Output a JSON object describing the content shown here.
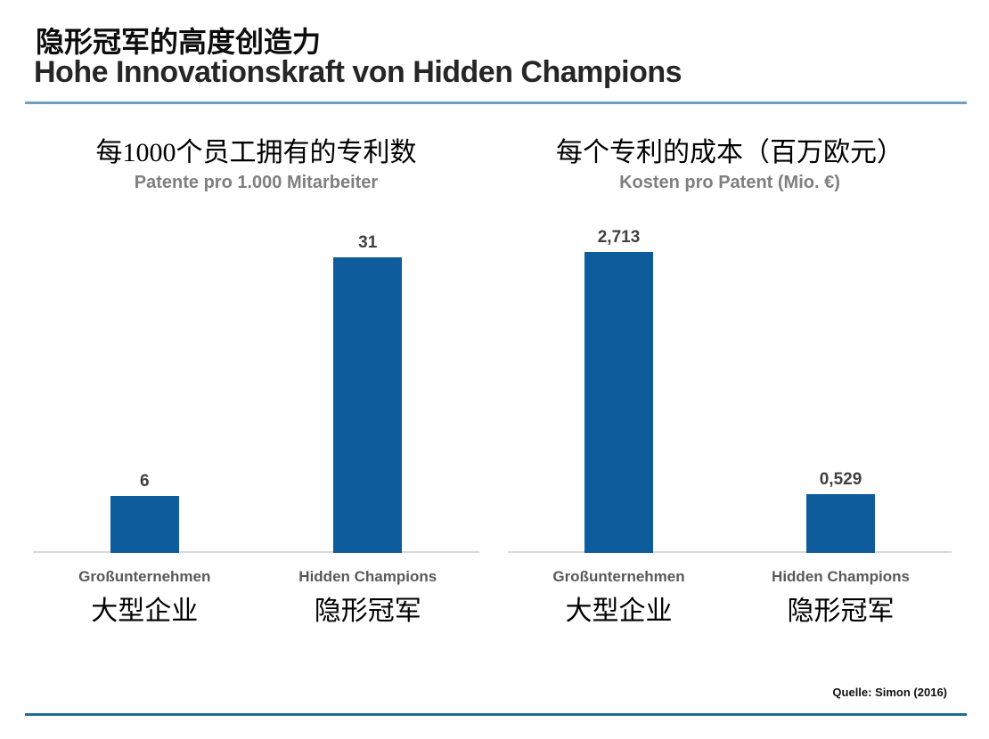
{
  "header": {
    "title_zh": "隐形冠军的高度创造力",
    "title_de": "Hohe Innovationskraft von Hidden Champions"
  },
  "footer": {
    "source": "Quelle: Simon (2016)"
  },
  "colors": {
    "bar": "#0E5C9C",
    "top_rule": "#6FA0C4",
    "bottom_rule": "#1D6E96",
    "subtitle_gray": "#7F7F7F",
    "category_gray": "#595959",
    "value_gray": "#404040",
    "axis_gray": "#D9D9D9"
  },
  "chart_data": [
    {
      "type": "bar",
      "title_zh": "每1000个员工拥有的专利数",
      "subtitle_de": "Patente pro 1.000 Mitarbeiter",
      "categories_de": [
        "Großunternehmen",
        "Hidden Champions"
      ],
      "categories_zh": [
        "大型企业",
        "隐形冠军"
      ],
      "values": [
        6,
        31
      ],
      "value_labels": [
        "6",
        "31"
      ],
      "ylim": [
        0,
        31
      ],
      "grid": false,
      "legend": false
    },
    {
      "type": "bar",
      "title_zh": "每个专利的成本（百万欧元）",
      "subtitle_de": "Kosten pro Patent (Mio. €)",
      "categories_de": [
        "Großunternehmen",
        "Hidden Champions"
      ],
      "categories_zh": [
        "大型企业",
        "隐形冠军"
      ],
      "values": [
        2.713,
        0.529
      ],
      "value_labels": [
        "2,713",
        "0,529"
      ],
      "ylim": [
        0,
        2.713
      ],
      "grid": false,
      "legend": false
    }
  ]
}
